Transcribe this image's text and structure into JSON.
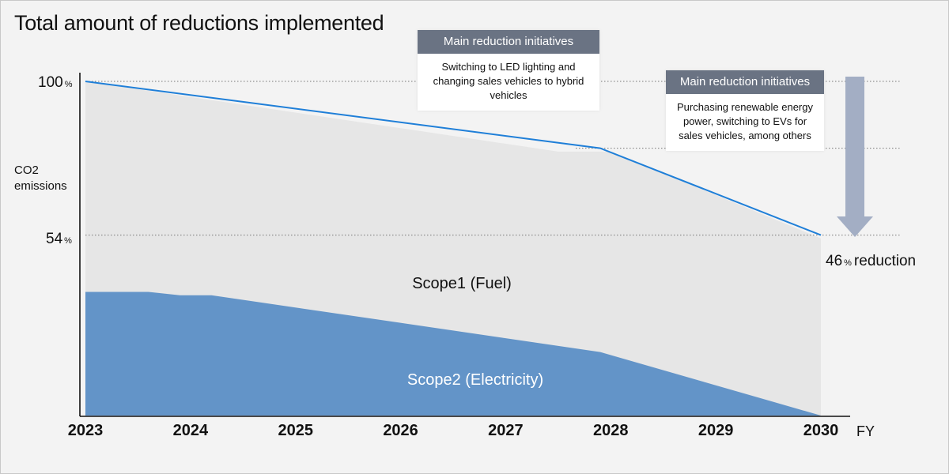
{
  "title": "Total amount of reductions implemented",
  "colors": {
    "scope1": "#e6e6e6",
    "scope2": "#6394c8",
    "total_line": "#1f7fd8",
    "arrow": "#a3aec4",
    "callout_header": "#6a7383"
  },
  "callouts": [
    {
      "header": "Main reduction initiatives",
      "body": "Switching to LED lighting and changing sales vehicles to hybrid vehicles"
    },
    {
      "header": "Main reduction initiatives",
      "body": "Purchasing renewable energy power, switching to EVs for sales vehicles, among others"
    }
  ],
  "reduction": {
    "value": "46",
    "unit": "%",
    "text": "reduction"
  },
  "chart_data": {
    "type": "area",
    "title": "Total amount of reductions implemented",
    "ylabel": "CO2\nemissions",
    "xlabel": "FY",
    "ytick_labels": [
      {
        "value": 100,
        "label": "100",
        "unit": "%"
      },
      {
        "value": 54,
        "label": "54",
        "unit": "%"
      }
    ],
    "x": [
      2023,
      2024,
      2025,
      2026,
      2027,
      2028,
      2029,
      2030
    ],
    "x_labels": [
      "2023",
      "2024",
      "2025",
      "2026",
      "2027",
      "2028",
      "2029",
      "2030"
    ],
    "xlim": [
      2023,
      2030
    ],
    "ylim": [
      0,
      100
    ],
    "dotted_gridlines": [
      100,
      80,
      54
    ],
    "series": [
      {
        "name": "Scope2 (Electricity)",
        "kind": "stacked-area",
        "points": [
          [
            2023,
            37
          ],
          [
            2023.6,
            37
          ],
          [
            2023.9,
            36
          ],
          [
            2024.2,
            36
          ],
          [
            2027.9,
            19
          ],
          [
            2030,
            0
          ]
        ]
      },
      {
        "name": "Scope1 (Fuel)",
        "kind": "stacked-area-top",
        "points": [
          [
            2023,
            100
          ],
          [
            2027.5,
            79
          ],
          [
            2028,
            79
          ],
          [
            2030,
            53
          ]
        ]
      },
      {
        "name": "total",
        "kind": "line",
        "points": [
          [
            2023,
            100
          ],
          [
            2027.9,
            80
          ],
          [
            2030,
            54
          ]
        ]
      }
    ]
  }
}
